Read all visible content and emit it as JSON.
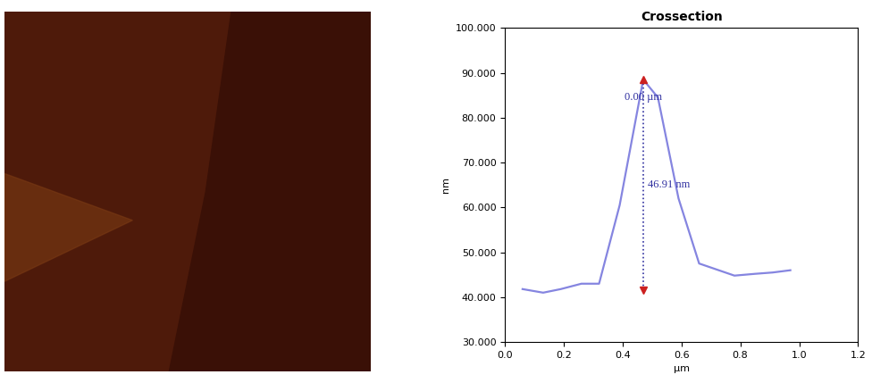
{
  "chart_data": {
    "type": "line",
    "title": "Crossection",
    "x_label": "µm",
    "y_label": "nm",
    "x": [
      0.06,
      0.13,
      0.19,
      0.26,
      0.32,
      0.39,
      0.47,
      0.52,
      0.59,
      0.66,
      0.78,
      0.85,
      0.91,
      0.97
    ],
    "values": [
      41.8,
      41.0,
      41.8,
      43.0,
      43.0,
      60.5,
      88.5,
      84.5,
      62.0,
      47.5,
      44.8,
      45.2,
      45.5,
      46.0
    ],
    "color": "#8585e0",
    "xlim": [
      0,
      1.2
    ],
    "xticks": [
      {
        "value": 0,
        "label": "0.0"
      },
      0.2,
      0.4,
      0.6,
      0.8,
      {
        "value": 1,
        "label": "1.0"
      },
      1.2
    ],
    "ylim": [
      30,
      100
    ],
    "yticks": [
      {
        "value": 30,
        "label": "30.000"
      },
      {
        "value": 40,
        "label": "40.000"
      },
      {
        "value": 50,
        "label": "50.000"
      },
      {
        "value": 60,
        "label": "60.000"
      },
      {
        "value": 70,
        "label": "70.000"
      },
      {
        "value": 80,
        "label": "80.000"
      },
      {
        "value": 90,
        "label": "90.000"
      },
      {
        "value": 100,
        "label": "100.000"
      }
    ],
    "grid": false,
    "measurement": {
      "x": 0.47,
      "y_top": 88.5,
      "y_bottom": 41.59,
      "x_label": "0.00 µm",
      "height_label": "46.91 nm"
    }
  }
}
